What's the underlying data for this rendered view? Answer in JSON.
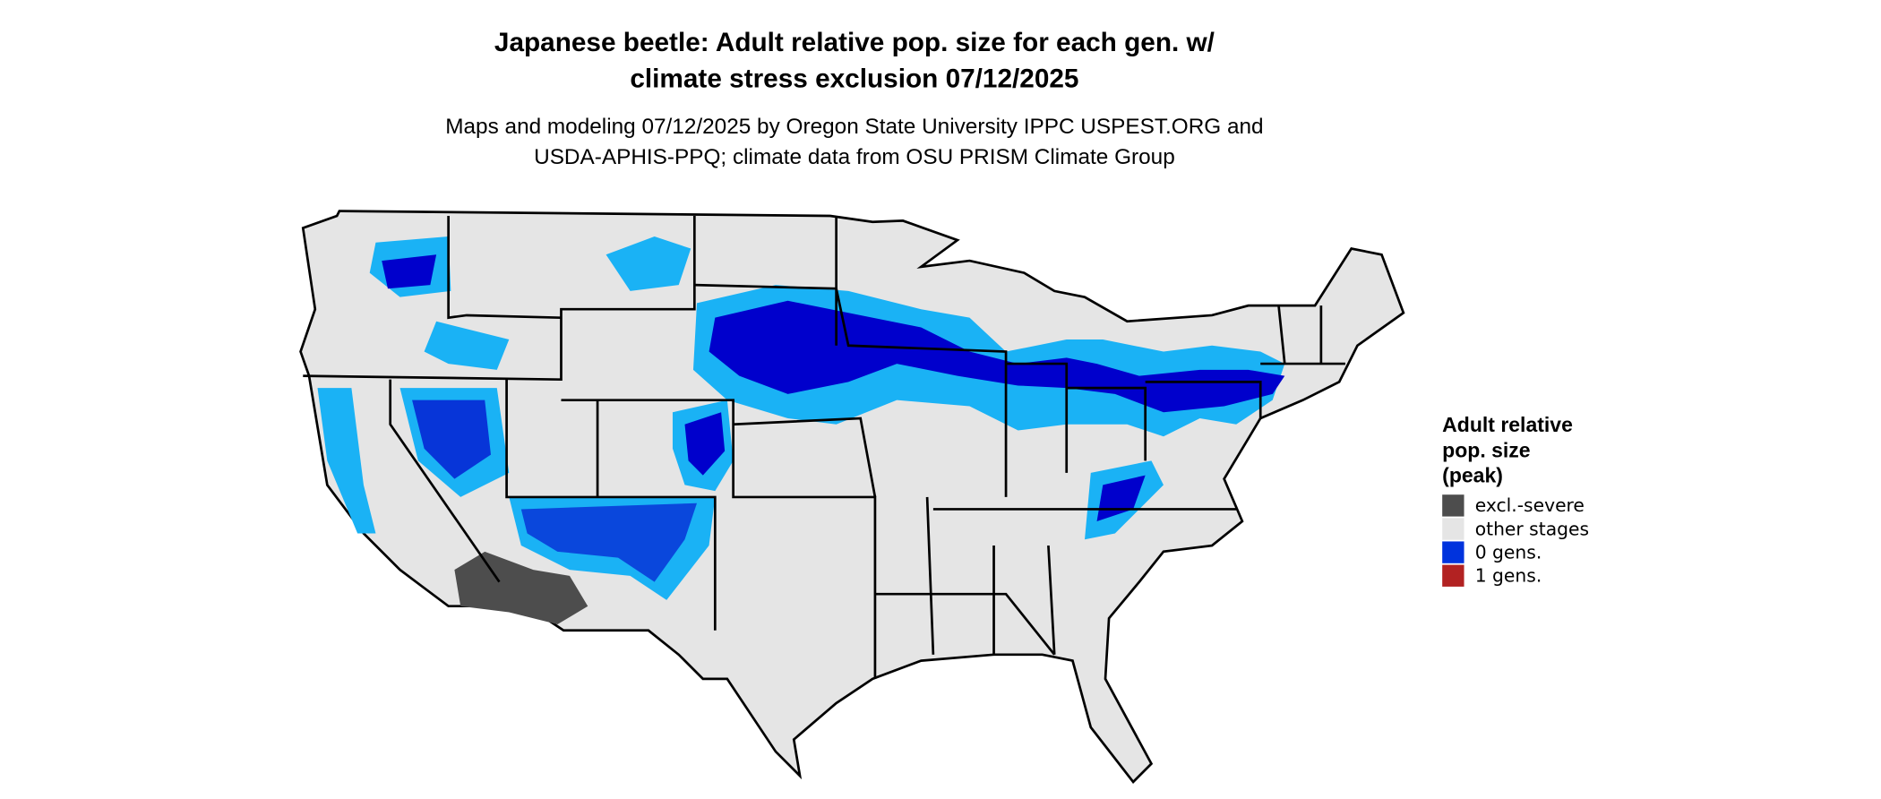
{
  "header": {
    "title_lines": [
      "Japanese beetle: Adult relative pop. size for each gen. w/",
      "climate stress exclusion 07/12/2025"
    ],
    "subtitle_lines": [
      "Maps and modeling 07/12/2025 by Oregon State University IPPC USPEST.ORG and",
      "USDA-APHIS-PPQ; climate data from OSU PRISM Climate Group"
    ]
  },
  "legend": {
    "title_lines": [
      "Adult relative",
      "pop. size",
      "(peak)"
    ],
    "items": [
      {
        "label": "excl.-severe",
        "color": "#4d4d4d"
      },
      {
        "label": "other stages",
        "color": "#e5e5e5"
      },
      {
        "label": "0 gens.",
        "color": "#0033dd"
      },
      {
        "label": "1 gens.",
        "color": "#b22222"
      }
    ]
  }
}
